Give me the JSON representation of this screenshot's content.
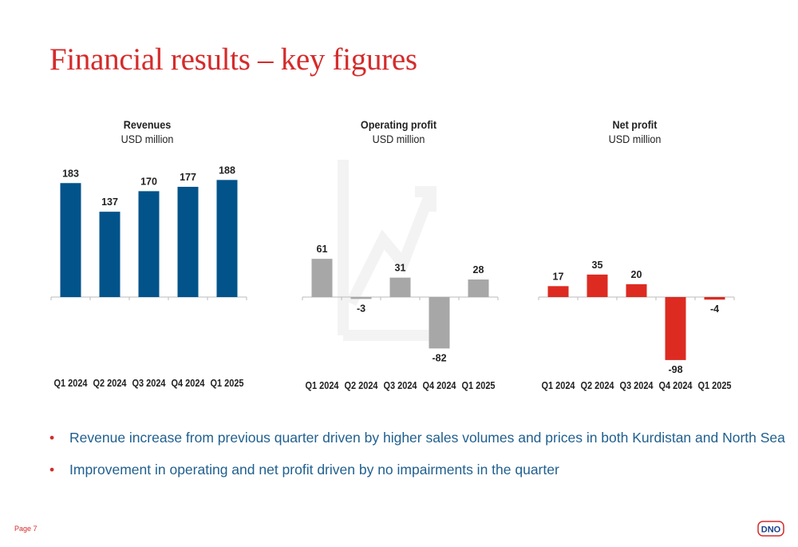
{
  "title": "Financial results – key figures",
  "colors": {
    "revenue": "#02538a",
    "operating": "#a7a7a7",
    "net": "#dd2b22",
    "accent": "#d52b2b",
    "bullet_text": "#1f5f8f"
  },
  "chart_data": [
    {
      "type": "bar",
      "title": "Revenues",
      "subtitle": "USD million",
      "categories": [
        "Q1 2024",
        "Q2 2024",
        "Q3 2024",
        "Q4 2024",
        "Q1 2025"
      ],
      "values": [
        183,
        137,
        170,
        177,
        188
      ],
      "labels": [
        "183",
        "137",
        "170",
        "177",
        "188"
      ],
      "ylim": [
        0,
        188
      ],
      "color": "#02538a"
    },
    {
      "type": "bar",
      "title": "Operating profit",
      "subtitle": "USD million",
      "categories": [
        "Q1 2024",
        "Q2 2024",
        "Q3 2024",
        "Q4 2024",
        "Q1 2025"
      ],
      "values": [
        61,
        -3,
        31,
        -82,
        28
      ],
      "labels": [
        "61",
        "-3",
        "31",
        "-82",
        "28"
      ],
      "ylim": [
        -82,
        61
      ],
      "color": "#a7a7a7"
    },
    {
      "type": "bar",
      "title": "Net profit",
      "subtitle": "USD million",
      "categories": [
        "Q1 2024",
        "Q2 2024",
        "Q3 2024",
        "Q4 2024",
        "Q1 2025"
      ],
      "values": [
        17,
        35,
        20,
        -98,
        -4
      ],
      "labels": [
        "17",
        "35",
        "20",
        "-98",
        "-4"
      ],
      "ylim": [
        -98,
        35
      ],
      "color": "#dd2b22"
    }
  ],
  "bullets": [
    "Revenue increase from previous quarter driven by higher sales volumes and prices in both Kurdistan and North Sea",
    "Improvement in operating and net profit driven by no impairments in the quarter"
  ],
  "bullet_marker": "•",
  "page_label": "Page 7",
  "logo_text": "DNO"
}
